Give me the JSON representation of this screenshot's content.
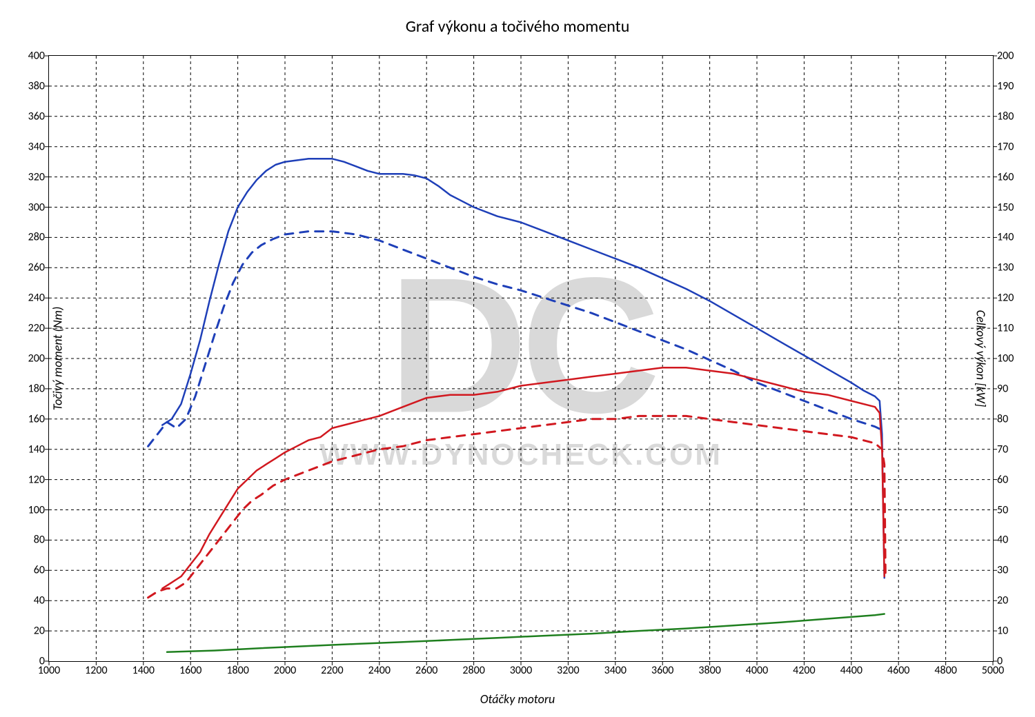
{
  "chart": {
    "type": "line",
    "title": "Graf výkonu a točivého momentu",
    "title_fontsize": 24,
    "background_color": "#ffffff",
    "border_color": "#000000",
    "grid_color": "#000000",
    "grid_dash": "4 4",
    "watermark_big": "DC",
    "watermark_url": "WWW.DYNOCHECK.COM",
    "watermark_color": "#d9d9d9",
    "x": {
      "label": "Otáčky motoru",
      "min": 1000,
      "max": 5000,
      "ticks": [
        1000,
        1200,
        1400,
        1600,
        1800,
        2000,
        2200,
        2400,
        2600,
        2800,
        3000,
        3200,
        3400,
        3600,
        3800,
        4000,
        4200,
        4400,
        4600,
        4800,
        5000
      ],
      "label_fontsize": 18
    },
    "y_left": {
      "label": "Točivý moment (Nm)",
      "min": 0,
      "max": 400,
      "ticks": [
        0,
        20,
        40,
        60,
        80,
        100,
        120,
        140,
        160,
        180,
        200,
        220,
        240,
        260,
        280,
        300,
        320,
        340,
        360,
        380,
        400
      ],
      "label_fontsize": 18
    },
    "y_right": {
      "label": "Celkový výkon [kW]",
      "min": 0,
      "max": 200,
      "ticks": [
        0,
        10,
        20,
        30,
        40,
        50,
        60,
        70,
        80,
        90,
        100,
        110,
        120,
        130,
        140,
        150,
        160,
        170,
        180,
        190,
        200
      ],
      "label_fontsize": 18
    },
    "series": [
      {
        "name": "torque_stock",
        "axis": "left",
        "color": "#1e3fb8",
        "width": 3,
        "dash": "12 10",
        "data": [
          [
            1420,
            142
          ],
          [
            1460,
            150
          ],
          [
            1500,
            158
          ],
          [
            1540,
            154
          ],
          [
            1580,
            160
          ],
          [
            1620,
            175
          ],
          [
            1660,
            195
          ],
          [
            1700,
            215
          ],
          [
            1740,
            234
          ],
          [
            1780,
            250
          ],
          [
            1820,
            262
          ],
          [
            1860,
            270
          ],
          [
            1900,
            275
          ],
          [
            1950,
            279
          ],
          [
            2000,
            282
          ],
          [
            2100,
            284
          ],
          [
            2200,
            284
          ],
          [
            2300,
            282
          ],
          [
            2400,
            278
          ],
          [
            2500,
            272
          ],
          [
            2600,
            266
          ],
          [
            2700,
            260
          ],
          [
            2800,
            254
          ],
          [
            2900,
            249
          ],
          [
            3000,
            245
          ],
          [
            3100,
            240
          ],
          [
            3200,
            235
          ],
          [
            3300,
            230
          ],
          [
            3400,
            224
          ],
          [
            3500,
            218
          ],
          [
            3600,
            212
          ],
          [
            3700,
            206
          ],
          [
            3800,
            199
          ],
          [
            3900,
            192
          ],
          [
            4000,
            184
          ],
          [
            4100,
            178
          ],
          [
            4200,
            172
          ],
          [
            4300,
            166
          ],
          [
            4400,
            160
          ],
          [
            4500,
            155
          ],
          [
            4540,
            152
          ]
        ]
      },
      {
        "name": "torque_tuned",
        "axis": "left",
        "color": "#1e3fb8",
        "width": 2.5,
        "dash": null,
        "data": [
          [
            1480,
            156
          ],
          [
            1520,
            160
          ],
          [
            1560,
            170
          ],
          [
            1600,
            190
          ],
          [
            1640,
            212
          ],
          [
            1680,
            238
          ],
          [
            1720,
            262
          ],
          [
            1760,
            284
          ],
          [
            1800,
            300
          ],
          [
            1840,
            310
          ],
          [
            1880,
            318
          ],
          [
            1920,
            324
          ],
          [
            1960,
            328
          ],
          [
            2000,
            330
          ],
          [
            2050,
            331
          ],
          [
            2100,
            332
          ],
          [
            2150,
            332
          ],
          [
            2200,
            332
          ],
          [
            2250,
            330
          ],
          [
            2300,
            327
          ],
          [
            2350,
            324
          ],
          [
            2400,
            322
          ],
          [
            2450,
            322
          ],
          [
            2500,
            322
          ],
          [
            2550,
            321
          ],
          [
            2600,
            319
          ],
          [
            2650,
            314
          ],
          [
            2700,
            308
          ],
          [
            2750,
            304
          ],
          [
            2800,
            300
          ],
          [
            2900,
            294
          ],
          [
            3000,
            290
          ],
          [
            3100,
            284
          ],
          [
            3200,
            278
          ],
          [
            3300,
            272
          ],
          [
            3400,
            266
          ],
          [
            3500,
            260
          ],
          [
            3600,
            253
          ],
          [
            3700,
            246
          ],
          [
            3800,
            238
          ],
          [
            3900,
            229
          ],
          [
            4000,
            220
          ],
          [
            4100,
            211
          ],
          [
            4200,
            202
          ],
          [
            4300,
            193
          ],
          [
            4400,
            184
          ],
          [
            4450,
            179
          ],
          [
            4500,
            175
          ],
          [
            4520,
            172
          ],
          [
            4530,
            150
          ],
          [
            4535,
            100
          ],
          [
            4540,
            55
          ]
        ]
      },
      {
        "name": "power_stock",
        "axis": "right",
        "color": "#d1181f",
        "width": 3,
        "dash": "12 10",
        "data": [
          [
            1420,
            21
          ],
          [
            1460,
            23
          ],
          [
            1500,
            24
          ],
          [
            1540,
            24
          ],
          [
            1580,
            26
          ],
          [
            1620,
            30
          ],
          [
            1660,
            34
          ],
          [
            1700,
            38
          ],
          [
            1740,
            42
          ],
          [
            1780,
            46
          ],
          [
            1820,
            50
          ],
          [
            1860,
            53
          ],
          [
            1900,
            55
          ],
          [
            1950,
            58
          ],
          [
            2000,
            60
          ],
          [
            2100,
            63
          ],
          [
            2200,
            66
          ],
          [
            2300,
            68
          ],
          [
            2400,
            70
          ],
          [
            2500,
            71
          ],
          [
            2600,
            73
          ],
          [
            2700,
            74
          ],
          [
            2800,
            75
          ],
          [
            2900,
            76
          ],
          [
            3000,
            77
          ],
          [
            3100,
            78
          ],
          [
            3200,
            79
          ],
          [
            3300,
            80
          ],
          [
            3400,
            80
          ],
          [
            3500,
            81
          ],
          [
            3600,
            81
          ],
          [
            3700,
            81
          ],
          [
            3800,
            80
          ],
          [
            3900,
            79
          ],
          [
            4000,
            78
          ],
          [
            4100,
            77
          ],
          [
            4200,
            76
          ],
          [
            4300,
            75
          ],
          [
            4400,
            74
          ],
          [
            4500,
            72
          ],
          [
            4530,
            70
          ],
          [
            4540,
            65
          ],
          [
            4542,
            50
          ],
          [
            4545,
            27
          ]
        ]
      },
      {
        "name": "power_tuned",
        "axis": "right",
        "color": "#d1181f",
        "width": 2.5,
        "dash": null,
        "data": [
          [
            1480,
            24
          ],
          [
            1520,
            26
          ],
          [
            1560,
            28
          ],
          [
            1600,
            32
          ],
          [
            1640,
            36
          ],
          [
            1680,
            42
          ],
          [
            1720,
            47
          ],
          [
            1760,
            52
          ],
          [
            1800,
            57
          ],
          [
            1840,
            60
          ],
          [
            1880,
            63
          ],
          [
            1920,
            65
          ],
          [
            1960,
            67
          ],
          [
            2000,
            69
          ],
          [
            2050,
            71
          ],
          [
            2100,
            73
          ],
          [
            2150,
            74
          ],
          [
            2200,
            77
          ],
          [
            2300,
            79
          ],
          [
            2400,
            81
          ],
          [
            2500,
            84
          ],
          [
            2600,
            87
          ],
          [
            2700,
            88
          ],
          [
            2800,
            88
          ],
          [
            2900,
            89
          ],
          [
            3000,
            91
          ],
          [
            3100,
            92
          ],
          [
            3200,
            93
          ],
          [
            3300,
            94
          ],
          [
            3400,
            95
          ],
          [
            3500,
            96
          ],
          [
            3600,
            97
          ],
          [
            3700,
            97
          ],
          [
            3800,
            96
          ],
          [
            3900,
            95
          ],
          [
            4000,
            93
          ],
          [
            4100,
            91
          ],
          [
            4200,
            89
          ],
          [
            4300,
            88
          ],
          [
            4400,
            86
          ],
          [
            4500,
            84
          ],
          [
            4520,
            82
          ],
          [
            4530,
            70
          ],
          [
            4535,
            50
          ],
          [
            4540,
            28
          ]
        ]
      },
      {
        "name": "loss",
        "axis": "right",
        "color": "#1e7f1e",
        "width": 2.5,
        "dash": null,
        "data": [
          [
            1500,
            3
          ],
          [
            1700,
            3.5
          ],
          [
            1900,
            4.3
          ],
          [
            2100,
            5
          ],
          [
            2300,
            5.7
          ],
          [
            2500,
            6.3
          ],
          [
            2700,
            7
          ],
          [
            2900,
            7.7
          ],
          [
            3100,
            8.4
          ],
          [
            3300,
            9.1
          ],
          [
            3500,
            10
          ],
          [
            3700,
            10.8
          ],
          [
            3900,
            11.8
          ],
          [
            4100,
            12.8
          ],
          [
            4300,
            14
          ],
          [
            4500,
            15.2
          ],
          [
            4540,
            15.6
          ]
        ]
      }
    ]
  }
}
